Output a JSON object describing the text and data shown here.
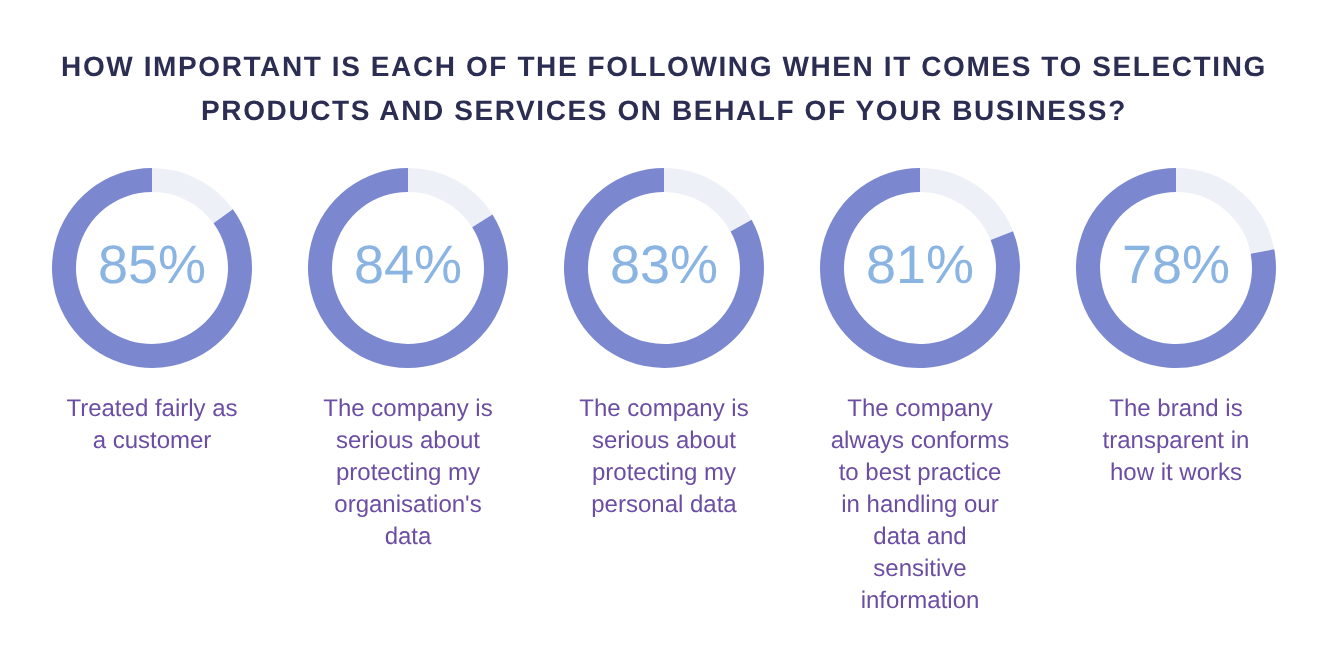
{
  "chart_data": [
    {
      "type": "other",
      "title": "HOW IMPORTANT IS EACH OF THE FOLLOWING WHEN IT COMES TO SELECTING PRODUCTS AND SERVICES ON BEHALF OF YOUR BUSINESS?"
    },
    {
      "type": "donut",
      "categories": [
        null,
        null
      ],
      "values": [
        15,
        85
      ],
      "colors": [
        "#eef0f8",
        "#7b88cf"
      ],
      "value_labels": [
        null,
        "85%"
      ],
      "annotations": [
        "Treated fairly as a customer"
      ]
    },
    {
      "type": "donut",
      "categories": [
        null,
        null
      ],
      "values": [
        16,
        84
      ],
      "colors": [
        "#eef0f8",
        "#7b88cf"
      ],
      "value_labels": [
        null,
        "84%"
      ],
      "annotations": [
        "The company is serious about protecting my organisation's data"
      ]
    },
    {
      "type": "donut",
      "categories": [
        null,
        null
      ],
      "values": [
        17,
        83
      ],
      "colors": [
        "#eef0f8",
        "#7b88cf"
      ],
      "value_labels": [
        null,
        "83%"
      ],
      "annotations": [
        "The company is serious about protecting my personal data"
      ]
    },
    {
      "type": "donut",
      "categories": [
        null,
        null
      ],
      "values": [
        19,
        81
      ],
      "colors": [
        "#eef0f8",
        "#7b88cf"
      ],
      "value_labels": [
        null,
        "81%"
      ],
      "annotations": [
        "The company always conforms to best practice in handling our data and sensitive information"
      ]
    },
    {
      "type": "donut",
      "categories": [
        null,
        null
      ],
      "values": [
        22,
        78
      ],
      "colors": [
        "#eef0f8",
        "#7b88cf"
      ],
      "value_labels": [
        null,
        "78%"
      ],
      "annotations": [
        "The brand is transparent in how it works"
      ]
    }
  ]
}
